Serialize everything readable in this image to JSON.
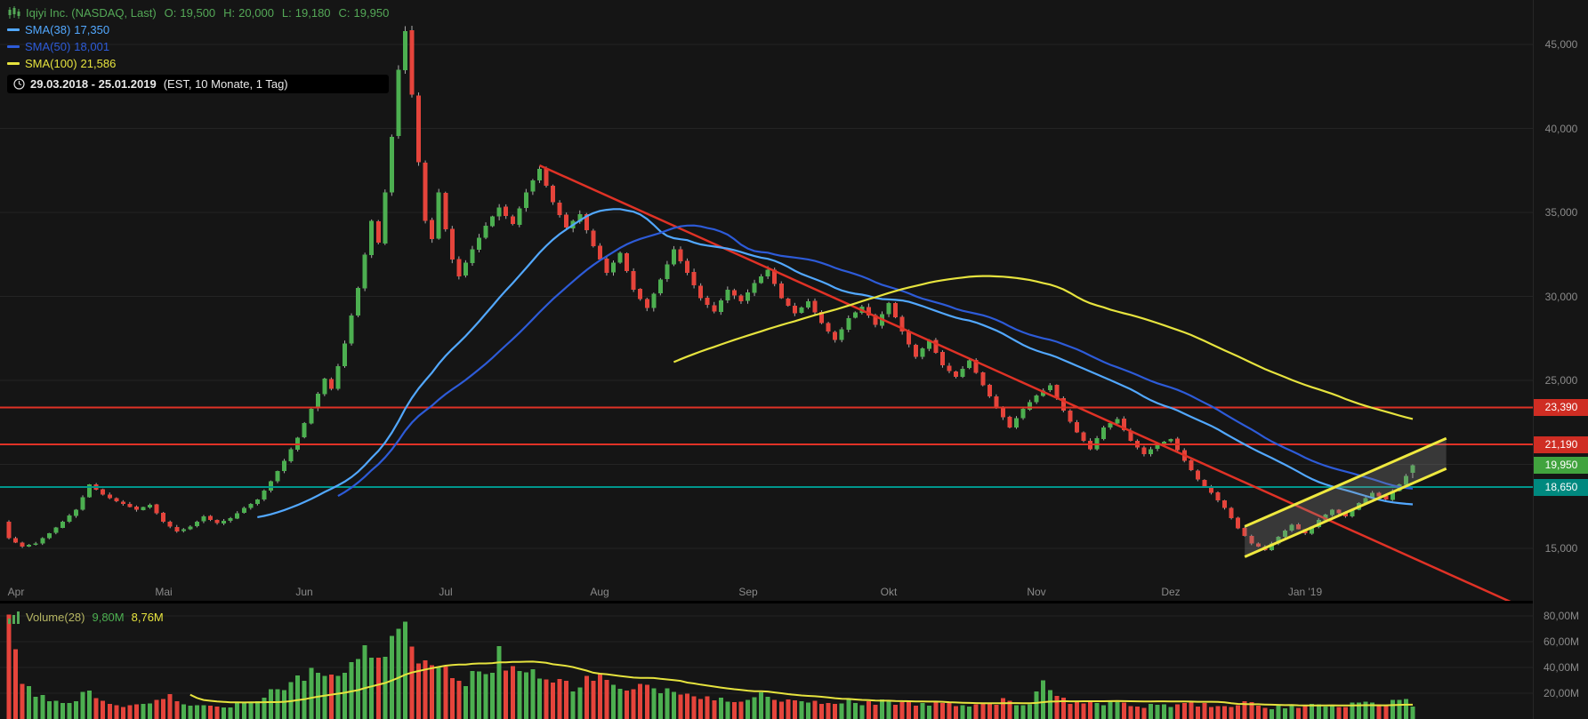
{
  "header": {
    "title": "Iqiyi Inc. (NASDAQ, Last)",
    "ohlc": {
      "o_label": "O:",
      "o": "19,500",
      "h_label": "H:",
      "h": "20,000",
      "l_label": "L:",
      "l": "19,180",
      "c_label": "C:",
      "c": "19,950"
    },
    "sma38_label": "SMA(38)",
    "sma38_value": "17,350",
    "sma50_label": "SMA(50)",
    "sma50_value": "18,001",
    "sma100_label": "SMA(100)",
    "sma100_value": "21,586",
    "date_range": "29.03.2018 - 25.01.2019",
    "timeframe": "(EST, 10 Monate, 1 Tag)"
  },
  "volume_header": {
    "label": "Volume(28)",
    "last_value": "9,80M",
    "ma_value": "8,76M"
  },
  "colors": {
    "background": "#151515",
    "grid": "#242424",
    "axis_text": "#8a8a8a",
    "candle_up": "#4caf50",
    "candle_down": "#e5443b",
    "wick": "#ababab",
    "sma38": "#52a8ff",
    "sma50": "#2d5bd8",
    "sma100": "#e6e33e",
    "resistance_red": "#e03226",
    "support_teal": "#00968c",
    "header_green": "#54a857"
  },
  "price_axis": {
    "labels": [
      {
        "text": "45,000",
        "value": 45000
      },
      {
        "text": "40,000",
        "value": 40000
      },
      {
        "text": "35,000",
        "value": 35000
      },
      {
        "text": "30,000",
        "value": 30000
      },
      {
        "text": "25,000",
        "value": 25000
      },
      {
        "text": "15,000",
        "value": 15000
      }
    ],
    "tags": [
      {
        "name": "resistance-tag-23390",
        "text": "23,390",
        "value": 23390,
        "bg": "#cf2d23",
        "fg": "#ffffff"
      },
      {
        "name": "resistance-tag-21190",
        "text": "21,190",
        "value": 21190,
        "bg": "#cf2d23",
        "fg": "#ffffff"
      },
      {
        "name": "last-price-tag",
        "text": "19,950",
        "value": 19950,
        "bg": "#41a33e",
        "fg": "#ffffff"
      },
      {
        "name": "support-tag-18650",
        "text": "18,650",
        "value": 18650,
        "bg": "#00897f",
        "fg": "#ffffff"
      }
    ]
  },
  "volume_axis": {
    "labels": [
      {
        "text": "80,00M",
        "value": 80
      },
      {
        "text": "60,00M",
        "value": 60
      },
      {
        "text": "40,00M",
        "value": 40
      },
      {
        "text": "20,00M",
        "value": 20
      }
    ]
  },
  "x_axis": {
    "months": [
      {
        "label": "Apr",
        "day": 1
      },
      {
        "label": "Mai",
        "day": 23
      },
      {
        "label": "Jun",
        "day": 44
      },
      {
        "label": "Jul",
        "day": 65
      },
      {
        "label": "Aug",
        "day": 88
      },
      {
        "label": "Sep",
        "day": 110
      },
      {
        "label": "Okt",
        "day": 131
      },
      {
        "label": "Nov",
        "day": 153
      },
      {
        "label": "Dez",
        "day": 173
      },
      {
        "label": "Jan '19",
        "day": 193
      }
    ]
  },
  "chart_data": {
    "type": "candlestick",
    "instrument": "Iqiyi Inc.",
    "exchange": "NASDAQ",
    "interval": "1 Tag",
    "timezone": "EST",
    "span": "10 Monate",
    "date_start": "29.03.2018",
    "date_end": "25.01.2019",
    "days": 209,
    "last": {
      "open": 19500,
      "high": 20000,
      "low": 19180,
      "close": 19950
    },
    "price_axis_range": [
      13000,
      47500
    ],
    "volume_axis_range_millions": [
      0,
      90
    ],
    "price_gridlines": [
      45000,
      40000,
      35000,
      30000,
      25000,
      20000,
      15000
    ],
    "volume_gridlines": [
      20,
      40,
      60,
      80
    ],
    "price_anchors": [
      [
        0,
        15600
      ],
      [
        2,
        15100
      ],
      [
        4,
        15300
      ],
      [
        6,
        15900
      ],
      [
        8,
        16600
      ],
      [
        10,
        17300
      ],
      [
        12,
        18800
      ],
      [
        14,
        18200
      ],
      [
        16,
        17800
      ],
      [
        19,
        17300
      ],
      [
        21,
        17600
      ],
      [
        23,
        16600
      ],
      [
        25,
        16000
      ],
      [
        27,
        16300
      ],
      [
        29,
        16900
      ],
      [
        31,
        16500
      ],
      [
        33,
        16800
      ],
      [
        35,
        17400
      ],
      [
        37,
        17900
      ],
      [
        39,
        19000
      ],
      [
        41,
        20200
      ],
      [
        43,
        21600
      ],
      [
        45,
        23300
      ],
      [
        47,
        25100
      ],
      [
        48,
        24500
      ],
      [
        50,
        27200
      ],
      [
        52,
        30500
      ],
      [
        54,
        34500
      ],
      [
        55,
        33200
      ],
      [
        56,
        36200
      ],
      [
        57,
        39500
      ],
      [
        58,
        43500
      ],
      [
        59,
        45800
      ],
      [
        60,
        42000
      ],
      [
        61,
        38000
      ],
      [
        62,
        34500
      ],
      [
        63,
        33400
      ],
      [
        64,
        36200
      ],
      [
        65,
        34000
      ],
      [
        66,
        32200
      ],
      [
        67,
        31200
      ],
      [
        69,
        32800
      ],
      [
        71,
        34200
      ],
      [
        73,
        35300
      ],
      [
        75,
        34300
      ],
      [
        77,
        36200
      ],
      [
        79,
        37600
      ],
      [
        81,
        35600
      ],
      [
        83,
        34100
      ],
      [
        85,
        34900
      ],
      [
        87,
        33000
      ],
      [
        89,
        31400
      ],
      [
        91,
        32600
      ],
      [
        93,
        30400
      ],
      [
        95,
        29300
      ],
      [
        97,
        31000
      ],
      [
        99,
        32800
      ],
      [
        101,
        31400
      ],
      [
        103,
        29900
      ],
      [
        105,
        29100
      ],
      [
        107,
        30400
      ],
      [
        109,
        29700
      ],
      [
        111,
        30800
      ],
      [
        113,
        31600
      ],
      [
        115,
        29900
      ],
      [
        117,
        29000
      ],
      [
        119,
        29700
      ],
      [
        121,
        28400
      ],
      [
        123,
        27400
      ],
      [
        125,
        28700
      ],
      [
        127,
        29400
      ],
      [
        129,
        28300
      ],
      [
        131,
        29600
      ],
      [
        133,
        27900
      ],
      [
        135,
        26400
      ],
      [
        137,
        27400
      ],
      [
        139,
        25900
      ],
      [
        141,
        25200
      ],
      [
        143,
        26200
      ],
      [
        145,
        24700
      ],
      [
        147,
        23400
      ],
      [
        149,
        22200
      ],
      [
        151,
        23300
      ],
      [
        153,
        24100
      ],
      [
        155,
        24700
      ],
      [
        157,
        23200
      ],
      [
        159,
        21900
      ],
      [
        161,
        20900
      ],
      [
        163,
        22200
      ],
      [
        165,
        22700
      ],
      [
        167,
        21400
      ],
      [
        169,
        20600
      ],
      [
        171,
        21200
      ],
      [
        173,
        21500
      ],
      [
        175,
        20200
      ],
      [
        177,
        19100
      ],
      [
        179,
        18300
      ],
      [
        181,
        17400
      ],
      [
        183,
        16200
      ],
      [
        185,
        15300
      ],
      [
        187,
        14900
      ],
      [
        189,
        15700
      ],
      [
        191,
        16400
      ],
      [
        193,
        15900
      ],
      [
        195,
        16700
      ],
      [
        197,
        17300
      ],
      [
        199,
        16900
      ],
      [
        201,
        17700
      ],
      [
        203,
        18300
      ],
      [
        205,
        17900
      ],
      [
        206,
        18400
      ],
      [
        207,
        18800
      ],
      [
        208,
        19300
      ],
      [
        209,
        19950
      ]
    ],
    "sma": [
      {
        "period": 38,
        "last_value": 17350,
        "color": "#52a8ff",
        "width": 2
      },
      {
        "period": 50,
        "last_value": 18001,
        "color": "#2d5bd8",
        "width": 2
      },
      {
        "period": 100,
        "last_value": 21586,
        "color": "#e6e33e",
        "width": 2
      }
    ],
    "horizontal_lines": [
      {
        "value": 23390,
        "color": "#e03226",
        "width": 2
      },
      {
        "value": 21190,
        "color": "#e03226",
        "width": 2
      },
      {
        "value": 18650,
        "color": "#00968c",
        "width": 2
      }
    ],
    "trend_lines": [
      {
        "from": [
          79,
          37800
        ],
        "to": [
          227,
          11200
        ],
        "color": "#e03226",
        "width": 2.5
      }
    ],
    "channel": {
      "from_day": 184,
      "to_day": 214,
      "upper_from": 16300,
      "upper_to": 21550,
      "lower_from": 14500,
      "lower_to": 19750,
      "color": "#efe93f",
      "width": 3,
      "fill": "rgba(140,140,140,0.3)"
    },
    "volume": {
      "ma_period": 28,
      "last_millions": 9.8,
      "ma_last_millions": 8.76,
      "anchors": [
        [
          0,
          78
        ],
        [
          1,
          46
        ],
        [
          2,
          30
        ],
        [
          3,
          22
        ],
        [
          5,
          16
        ],
        [
          8,
          13
        ],
        [
          10,
          15
        ],
        [
          12,
          21
        ],
        [
          14,
          14
        ],
        [
          16,
          11
        ],
        [
          19,
          10
        ],
        [
          22,
          13
        ],
        [
          24,
          17
        ],
        [
          26,
          11
        ],
        [
          29,
          10
        ],
        [
          32,
          10
        ],
        [
          34,
          12
        ],
        [
          36,
          14
        ],
        [
          38,
          19
        ],
        [
          40,
          25
        ],
        [
          42,
          29
        ],
        [
          44,
          34
        ],
        [
          46,
          40
        ],
        [
          48,
          33
        ],
        [
          50,
          38
        ],
        [
          52,
          47
        ],
        [
          54,
          56
        ],
        [
          56,
          51
        ],
        [
          58,
          62
        ],
        [
          59,
          65
        ],
        [
          60,
          57
        ],
        [
          61,
          49
        ],
        [
          62,
          43
        ],
        [
          64,
          37
        ],
        [
          66,
          33
        ],
        [
          68,
          29
        ],
        [
          70,
          36
        ],
        [
          72,
          43
        ],
        [
          73,
          50
        ],
        [
          74,
          44
        ],
        [
          76,
          37
        ],
        [
          78,
          33
        ],
        [
          80,
          29
        ],
        [
          82,
          27
        ],
        [
          84,
          25
        ],
        [
          86,
          29
        ],
        [
          88,
          33
        ],
        [
          90,
          27
        ],
        [
          92,
          23
        ],
        [
          94,
          26
        ],
        [
          96,
          21
        ],
        [
          98,
          23
        ],
        [
          100,
          19
        ],
        [
          102,
          17
        ],
        [
          104,
          15
        ],
        [
          106,
          17
        ],
        [
          108,
          15
        ],
        [
          110,
          17
        ],
        [
          112,
          19
        ],
        [
          114,
          15
        ],
        [
          116,
          13
        ],
        [
          118,
          14
        ],
        [
          120,
          13
        ],
        [
          122,
          12
        ],
        [
          124,
          14
        ],
        [
          126,
          13
        ],
        [
          128,
          12
        ],
        [
          130,
          14
        ],
        [
          132,
          13
        ],
        [
          134,
          12
        ],
        [
          136,
          11
        ],
        [
          138,
          12
        ],
        [
          140,
          13
        ],
        [
          142,
          11
        ],
        [
          144,
          12
        ],
        [
          146,
          13
        ],
        [
          148,
          14
        ],
        [
          150,
          12
        ],
        [
          152,
          13
        ],
        [
          154,
          27
        ],
        [
          155,
          19
        ],
        [
          156,
          16
        ],
        [
          158,
          13
        ],
        [
          160,
          12
        ],
        [
          162,
          14
        ],
        [
          164,
          12
        ],
        [
          166,
          11
        ],
        [
          168,
          11
        ],
        [
          170,
          10
        ],
        [
          172,
          11
        ],
        [
          174,
          11
        ],
        [
          176,
          12
        ],
        [
          178,
          11
        ],
        [
          180,
          10
        ],
        [
          182,
          11
        ],
        [
          184,
          12
        ],
        [
          186,
          10
        ],
        [
          188,
          9
        ],
        [
          190,
          10
        ],
        [
          192,
          9
        ],
        [
          194,
          10
        ],
        [
          196,
          11
        ],
        [
          198,
          10
        ],
        [
          200,
          12
        ],
        [
          202,
          13
        ],
        [
          204,
          11
        ],
        [
          206,
          13
        ],
        [
          208,
          15
        ],
        [
          209,
          9.8
        ]
      ]
    }
  }
}
